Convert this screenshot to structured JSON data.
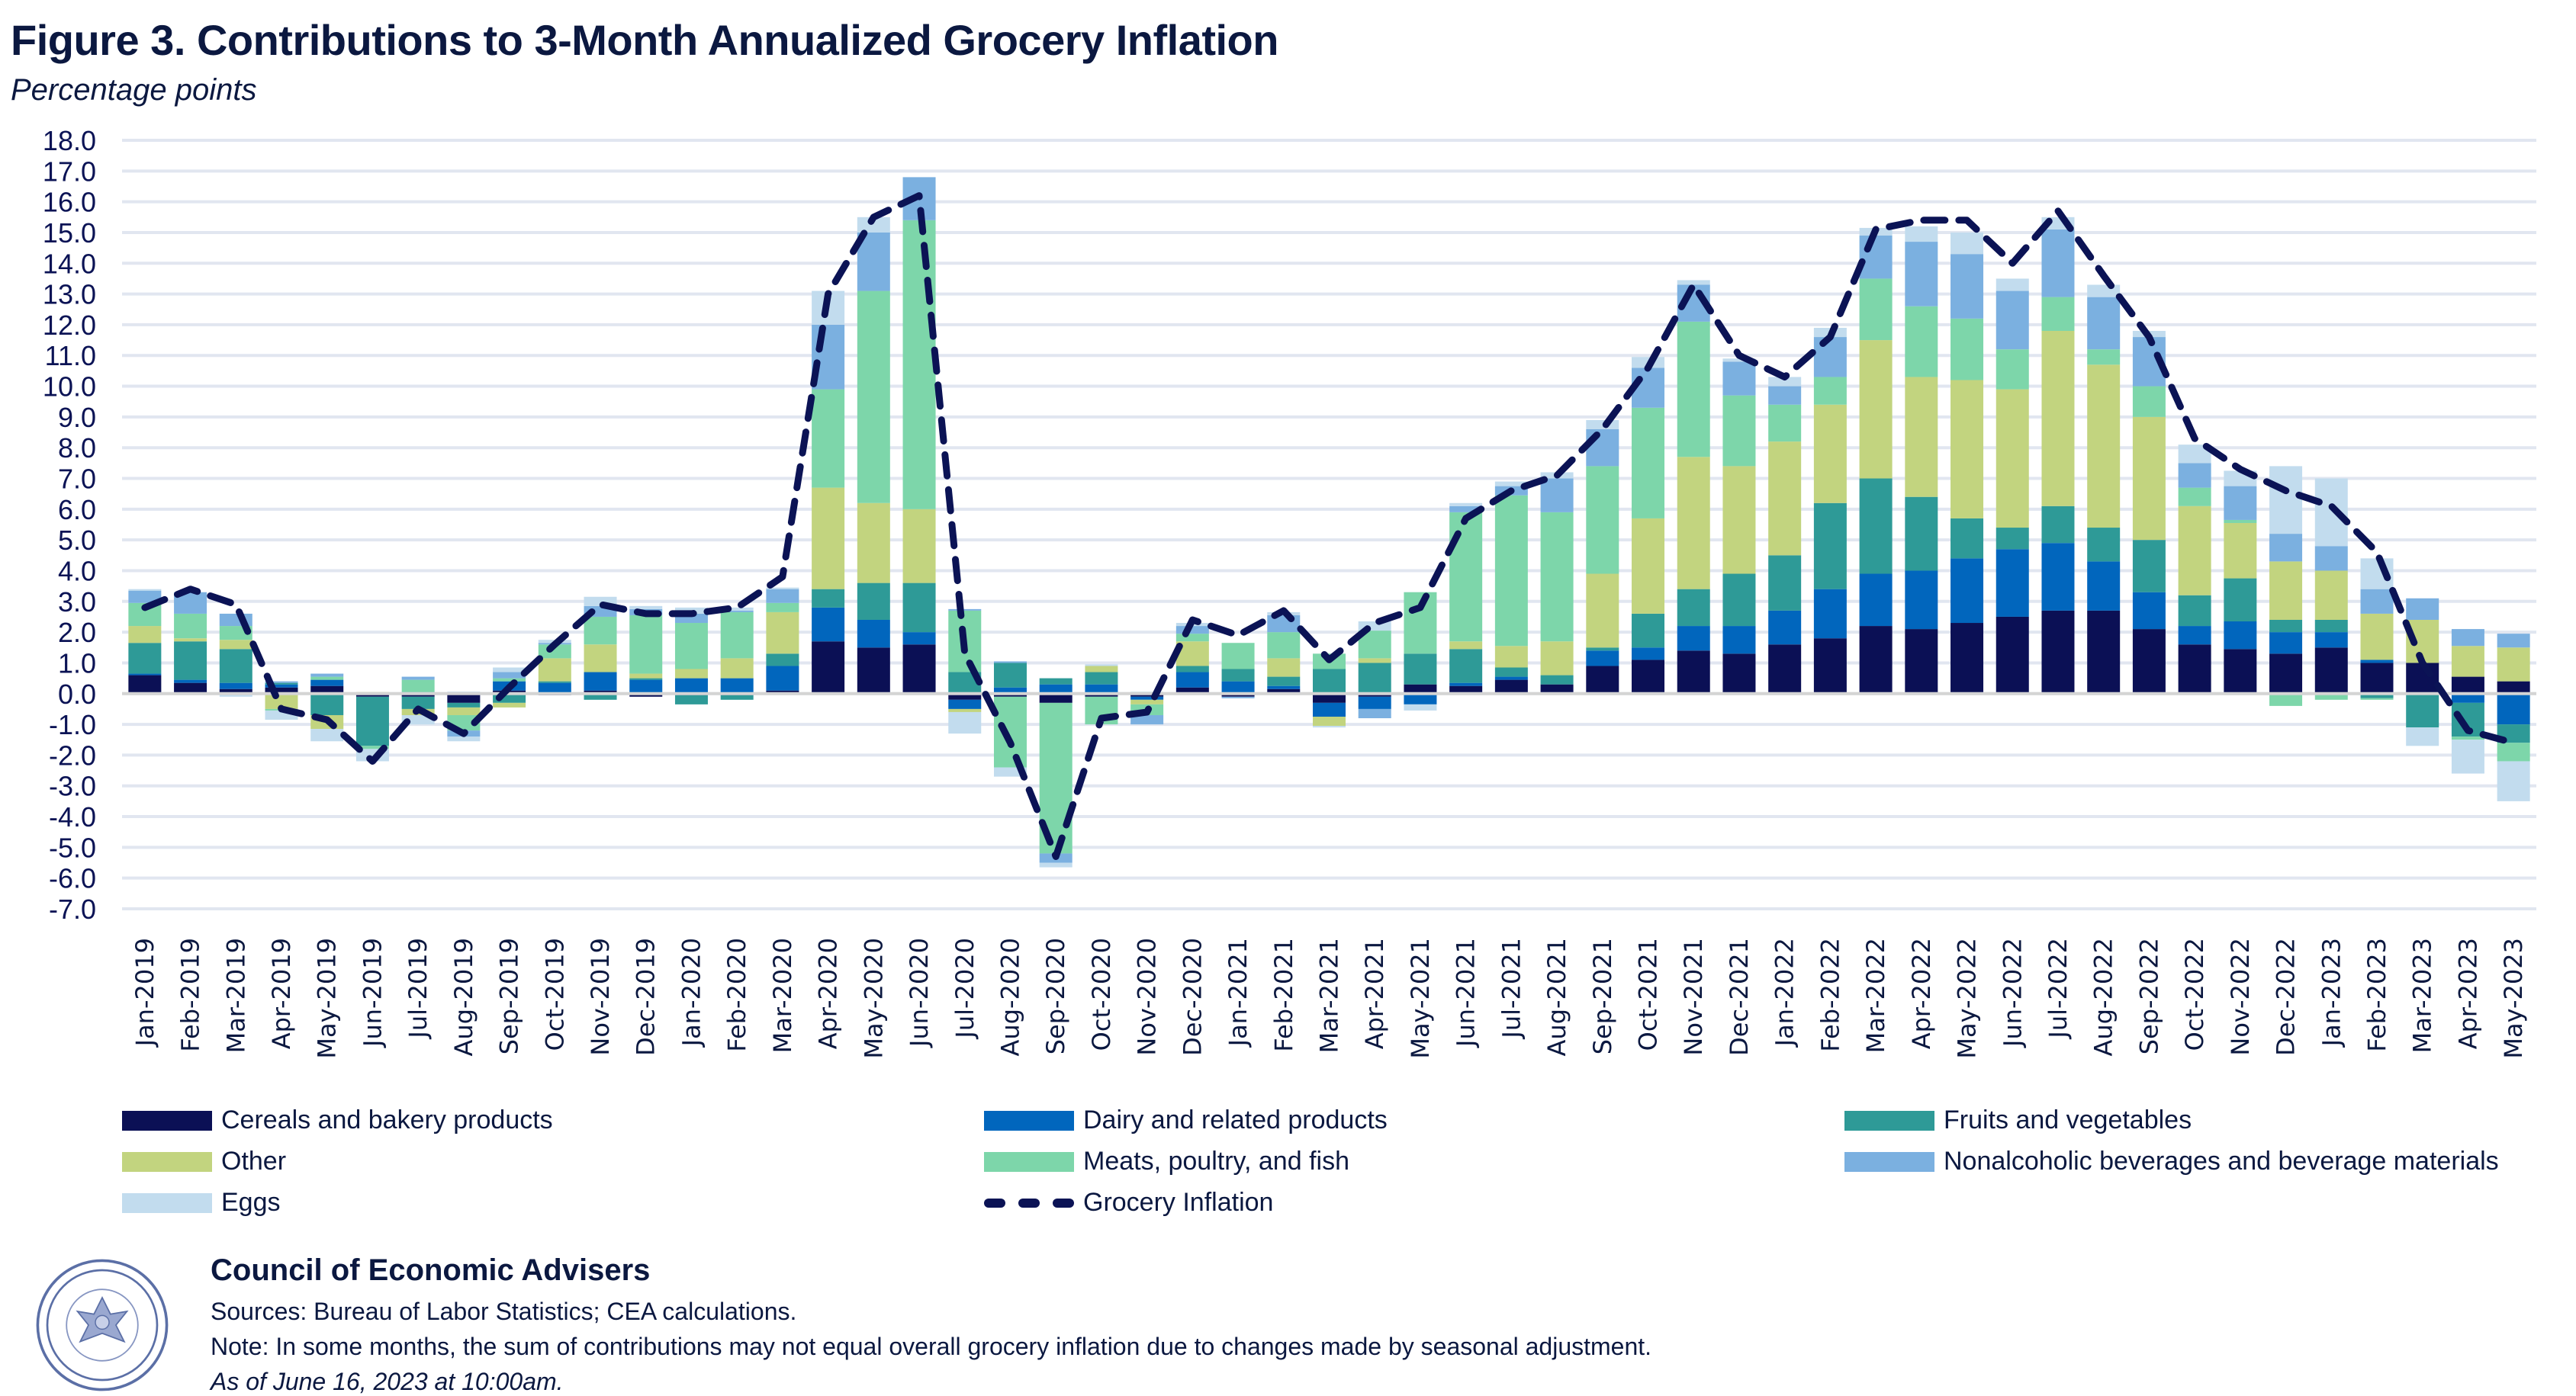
{
  "title": "Figure 3. Contributions to 3-Month Annualized Grocery Inflation",
  "subtitle": "Percentage points",
  "chart_data": {
    "type": "bar",
    "stacked": true,
    "title": "Figure 3. Contributions to 3-Month Annualized Grocery Inflation",
    "ylabel": "Percentage points",
    "xlabel": "",
    "ylim": [
      -7,
      18
    ],
    "ytick_step": 1,
    "ytick_labels": [
      "18.0",
      "17.0",
      "16.0",
      "15.0",
      "14.0",
      "13.0",
      "12.0",
      "11.0",
      "10.0",
      "9.0",
      "8.0",
      "7.0",
      "6.0",
      "5.0",
      "4.0",
      "3.0",
      "2.0",
      "1.0",
      "0.0",
      "-1.0",
      "-2.0",
      "-3.0",
      "-4.0",
      "-5.0",
      "-6.0",
      "-7.0"
    ],
    "grid": true,
    "legend_position": "bottom",
    "categories": [
      "Jan-2019",
      "Feb-2019",
      "Mar-2019",
      "Apr-2019",
      "May-2019",
      "Jun-2019",
      "Jul-2019",
      "Aug-2019",
      "Sep-2019",
      "Oct-2019",
      "Nov-2019",
      "Dec-2019",
      "Jan-2020",
      "Feb-2020",
      "Mar-2020",
      "Apr-2020",
      "May-2020",
      "Jun-2020",
      "Jul-2020",
      "Aug-2020",
      "Sep-2020",
      "Oct-2020",
      "Nov-2020",
      "Dec-2020",
      "Jan-2021",
      "Feb-2021",
      "Mar-2021",
      "Apr-2021",
      "May-2021",
      "Jun-2021",
      "Jul-2021",
      "Aug-2021",
      "Sep-2021",
      "Oct-2021",
      "Nov-2021",
      "Dec-2021",
      "Jan-2022",
      "Feb-2022",
      "Mar-2022",
      "Apr-2022",
      "May-2022",
      "Jun-2022",
      "Jul-2022",
      "Aug-2022",
      "Sep-2022",
      "Oct-2022",
      "Nov-2022",
      "Dec-2022",
      "Jan-2023",
      "Feb-2023",
      "Mar-2023",
      "Apr-2023",
      "May-2023"
    ],
    "series": [
      {
        "name": "Cereals and bakery products",
        "color": "#0b1055",
        "values": [
          0.6,
          0.35,
          0.15,
          0.2,
          0.25,
          -0.1,
          -0.1,
          -0.3,
          0.1,
          -0.05,
          0.1,
          -0.1,
          -0.05,
          -0.05,
          0.1,
          1.7,
          1.5,
          1.6,
          -0.2,
          -0.1,
          -0.3,
          -0.1,
          -0.1,
          0.2,
          -0.1,
          0.15,
          -0.3,
          -0.1,
          0.3,
          0.25,
          0.45,
          0.3,
          0.9,
          1.1,
          1.4,
          1.3,
          1.6,
          1.8,
          2.2,
          2.1,
          2.3,
          2.5,
          2.7,
          2.7,
          2.1,
          1.6,
          1.45,
          1.3,
          1.5,
          1.0,
          1.0,
          0.55,
          0.4
        ]
      },
      {
        "name": "Dairy and related products",
        "color": "#0166bd",
        "values": [
          0.05,
          0.1,
          0.2,
          0.1,
          0.2,
          0.0,
          0.05,
          0.05,
          0.3,
          0.35,
          0.6,
          0.45,
          0.5,
          0.5,
          0.8,
          1.1,
          0.9,
          0.4,
          -0.3,
          0.2,
          0.3,
          0.3,
          -0.1,
          0.5,
          0.4,
          0.1,
          -0.45,
          -0.4,
          -0.35,
          0.1,
          0.1,
          0.0,
          0.5,
          0.4,
          0.8,
          0.9,
          1.1,
          1.6,
          1.7,
          1.9,
          2.1,
          2.2,
          2.2,
          1.6,
          1.2,
          0.6,
          0.9,
          0.7,
          0.5,
          0.1,
          0.0,
          -0.3,
          -1.0
        ]
      },
      {
        "name": "Fruits and vegetables",
        "color": "#2e9a97",
        "values": [
          1.0,
          1.25,
          1.1,
          0.05,
          -0.7,
          -1.6,
          -0.4,
          -0.15,
          -0.3,
          0.05,
          -0.2,
          0.05,
          -0.3,
          -0.15,
          0.4,
          0.6,
          1.2,
          1.6,
          0.7,
          0.8,
          0.2,
          0.4,
          0.05,
          0.2,
          0.4,
          0.3,
          0.8,
          1.0,
          1.0,
          1.1,
          0.3,
          0.3,
          0.1,
          1.1,
          1.2,
          1.7,
          1.8,
          2.8,
          3.1,
          2.4,
          1.3,
          0.7,
          1.2,
          1.1,
          1.7,
          1.0,
          1.4,
          0.4,
          0.4,
          -0.15,
          -1.1,
          -1.1,
          -0.6
        ]
      },
      {
        "name": "Other",
        "color": "#c2d47f",
        "values": [
          0.55,
          0.1,
          0.3,
          -0.5,
          -0.45,
          0.05,
          -0.2,
          -0.25,
          -0.15,
          0.75,
          0.9,
          0.15,
          0.3,
          0.65,
          1.35,
          3.3,
          2.6,
          2.4,
          -0.1,
          0.0,
          0.0,
          0.2,
          -0.15,
          0.8,
          0.0,
          0.6,
          -0.3,
          0.15,
          0.0,
          0.25,
          0.7,
          1.1,
          2.4,
          3.1,
          4.3,
          3.5,
          3.7,
          3.2,
          4.5,
          3.9,
          4.5,
          4.5,
          5.7,
          5.3,
          4.0,
          2.9,
          1.8,
          1.9,
          1.6,
          1.5,
          1.4,
          1.0,
          1.1
        ]
      },
      {
        "name": "Meats, poultry, and fish",
        "color": "#7dd6aa",
        "values": [
          0.75,
          0.8,
          0.45,
          -0.05,
          0.1,
          -0.1,
          0.4,
          -0.5,
          0.1,
          0.45,
          0.9,
          1.9,
          1.5,
          1.5,
          0.3,
          3.2,
          6.9,
          9.4,
          2.0,
          -2.3,
          -4.9,
          -0.9,
          -0.35,
          0.25,
          0.85,
          0.85,
          0.5,
          0.9,
          2.0,
          4.2,
          4.9,
          4.2,
          3.5,
          3.6,
          4.4,
          2.3,
          1.2,
          0.9,
          2.0,
          2.3,
          2.0,
          1.3,
          1.1,
          0.5,
          1.0,
          0.6,
          0.1,
          -0.4,
          -0.2,
          -0.05,
          0.0,
          -0.1,
          -0.6
        ]
      },
      {
        "name": "Nonalcoholic beverages and beverage materials",
        "color": "#7bb0e0",
        "values": [
          0.4,
          0.7,
          0.4,
          0.05,
          0.1,
          0.0,
          0.1,
          -0.2,
          0.2,
          0.05,
          0.35,
          0.2,
          0.3,
          0.05,
          0.45,
          2.1,
          1.9,
          1.4,
          0.05,
          0.05,
          -0.3,
          0.0,
          -0.3,
          0.25,
          -0.05,
          0.55,
          0.0,
          -0.3,
          0.0,
          0.2,
          0.3,
          1.1,
          1.2,
          1.3,
          1.2,
          1.1,
          0.6,
          1.3,
          1.4,
          2.1,
          2.1,
          1.9,
          2.2,
          1.7,
          1.6,
          0.8,
          1.1,
          0.9,
          0.8,
          0.8,
          0.7,
          0.55,
          0.45
        ]
      },
      {
        "name": "Eggs",
        "color": "#c2dcee",
        "values": [
          0.05,
          0.0,
          -0.1,
          -0.3,
          -0.4,
          -0.4,
          -0.3,
          -0.15,
          0.15,
          0.1,
          0.3,
          0.1,
          0.2,
          0.1,
          0.05,
          1.1,
          0.5,
          0.0,
          -0.7,
          -0.3,
          -0.15,
          0.05,
          0.0,
          0.1,
          0.0,
          0.1,
          -0.05,
          0.3,
          -0.2,
          0.1,
          0.15,
          0.2,
          0.3,
          0.35,
          0.15,
          0.1,
          0.3,
          0.3,
          0.25,
          0.5,
          0.7,
          0.4,
          0.4,
          0.4,
          0.2,
          0.6,
          0.5,
          2.2,
          2.2,
          1.0,
          -0.6,
          -1.1,
          -1.3
        ]
      }
    ],
    "line": {
      "name": "Grocery Inflation",
      "color": "#0b1355",
      "style": "dashed",
      "values": [
        2.8,
        3.4,
        2.9,
        -0.5,
        -0.85,
        -2.2,
        -0.5,
        -1.3,
        0.2,
        1.6,
        2.9,
        2.6,
        2.6,
        2.8,
        3.8,
        13.0,
        15.5,
        16.2,
        1.3,
        -1.6,
        -5.3,
        -0.8,
        -0.6,
        2.4,
        1.9,
        2.7,
        1.1,
        2.3,
        2.8,
        5.7,
        6.6,
        7.1,
        8.6,
        10.6,
        13.3,
        11.0,
        10.3,
        11.6,
        15.1,
        15.4,
        15.4,
        14.0,
        15.7,
        13.6,
        11.6,
        8.3,
        7.3,
        6.6,
        6.1,
        4.6,
        1.0,
        -1.2,
        -1.6
      ]
    }
  },
  "legend": {
    "items": [
      {
        "label": "Cereals and bakery products",
        "color": "#0b1055",
        "kind": "swatch"
      },
      {
        "label": "Dairy and related products",
        "color": "#0166bd",
        "kind": "swatch"
      },
      {
        "label": "Fruits and vegetables",
        "color": "#2e9a97",
        "kind": "swatch"
      },
      {
        "label": "Other",
        "color": "#c2d47f",
        "kind": "swatch"
      },
      {
        "label": "Meats, poultry, and fish",
        "color": "#7dd6aa",
        "kind": "swatch"
      },
      {
        "label": "Nonalcoholic beverages and beverage materials",
        "color": "#7bb0e0",
        "kind": "swatch"
      },
      {
        "label": "Eggs",
        "color": "#c2dcee",
        "kind": "swatch"
      },
      {
        "label": "Grocery Inflation",
        "color": "#0b1355",
        "kind": "dash"
      }
    ]
  },
  "footer": {
    "organization": "Council of Economic Advisers",
    "sources": "Sources: Bureau of Labor Statistics; CEA calculations.",
    "note": "Note: In some months, the sum of contributions may not equal overall grocery inflation due to changes made by seasonal adjustment.",
    "as_of": "As of June 16, 2023 at 10:00am.",
    "seal_icon": "executive-office-seal-icon"
  }
}
